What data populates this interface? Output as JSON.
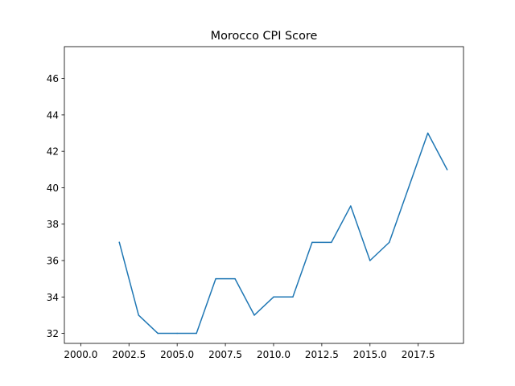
{
  "chart_data": {
    "type": "line",
    "title": "Morocco CPI Score",
    "xlabel": "",
    "ylabel": "",
    "xlim": [
      1999.15,
      2019.85
    ],
    "ylim": [
      31.45,
      47.75
    ],
    "x_ticks": [
      2000.0,
      2002.5,
      2005.0,
      2007.5,
      2010.0,
      2012.5,
      2015.0,
      2017.5
    ],
    "x_tick_labels": [
      "2000.0",
      "2002.5",
      "2005.0",
      "2007.5",
      "2010.0",
      "2012.5",
      "2015.0",
      "2017.5"
    ],
    "y_ticks": [
      32,
      34,
      36,
      38,
      40,
      42,
      44,
      46
    ],
    "y_tick_labels": [
      "32",
      "34",
      "36",
      "38",
      "40",
      "42",
      "44",
      "46"
    ],
    "grid": false,
    "series": [
      {
        "color": "#1f77b4",
        "x": [
          2002,
          2003,
          2004,
          2005,
          2006,
          2007,
          2008,
          2009,
          2010,
          2011,
          2012,
          2013,
          2014,
          2015,
          2016,
          2017,
          2018,
          2019
        ],
        "values": [
          37,
          33,
          32,
          32,
          32,
          35,
          35,
          33,
          34,
          34,
          37,
          37,
          39,
          36,
          37,
          40,
          43,
          41
        ]
      }
    ]
  }
}
